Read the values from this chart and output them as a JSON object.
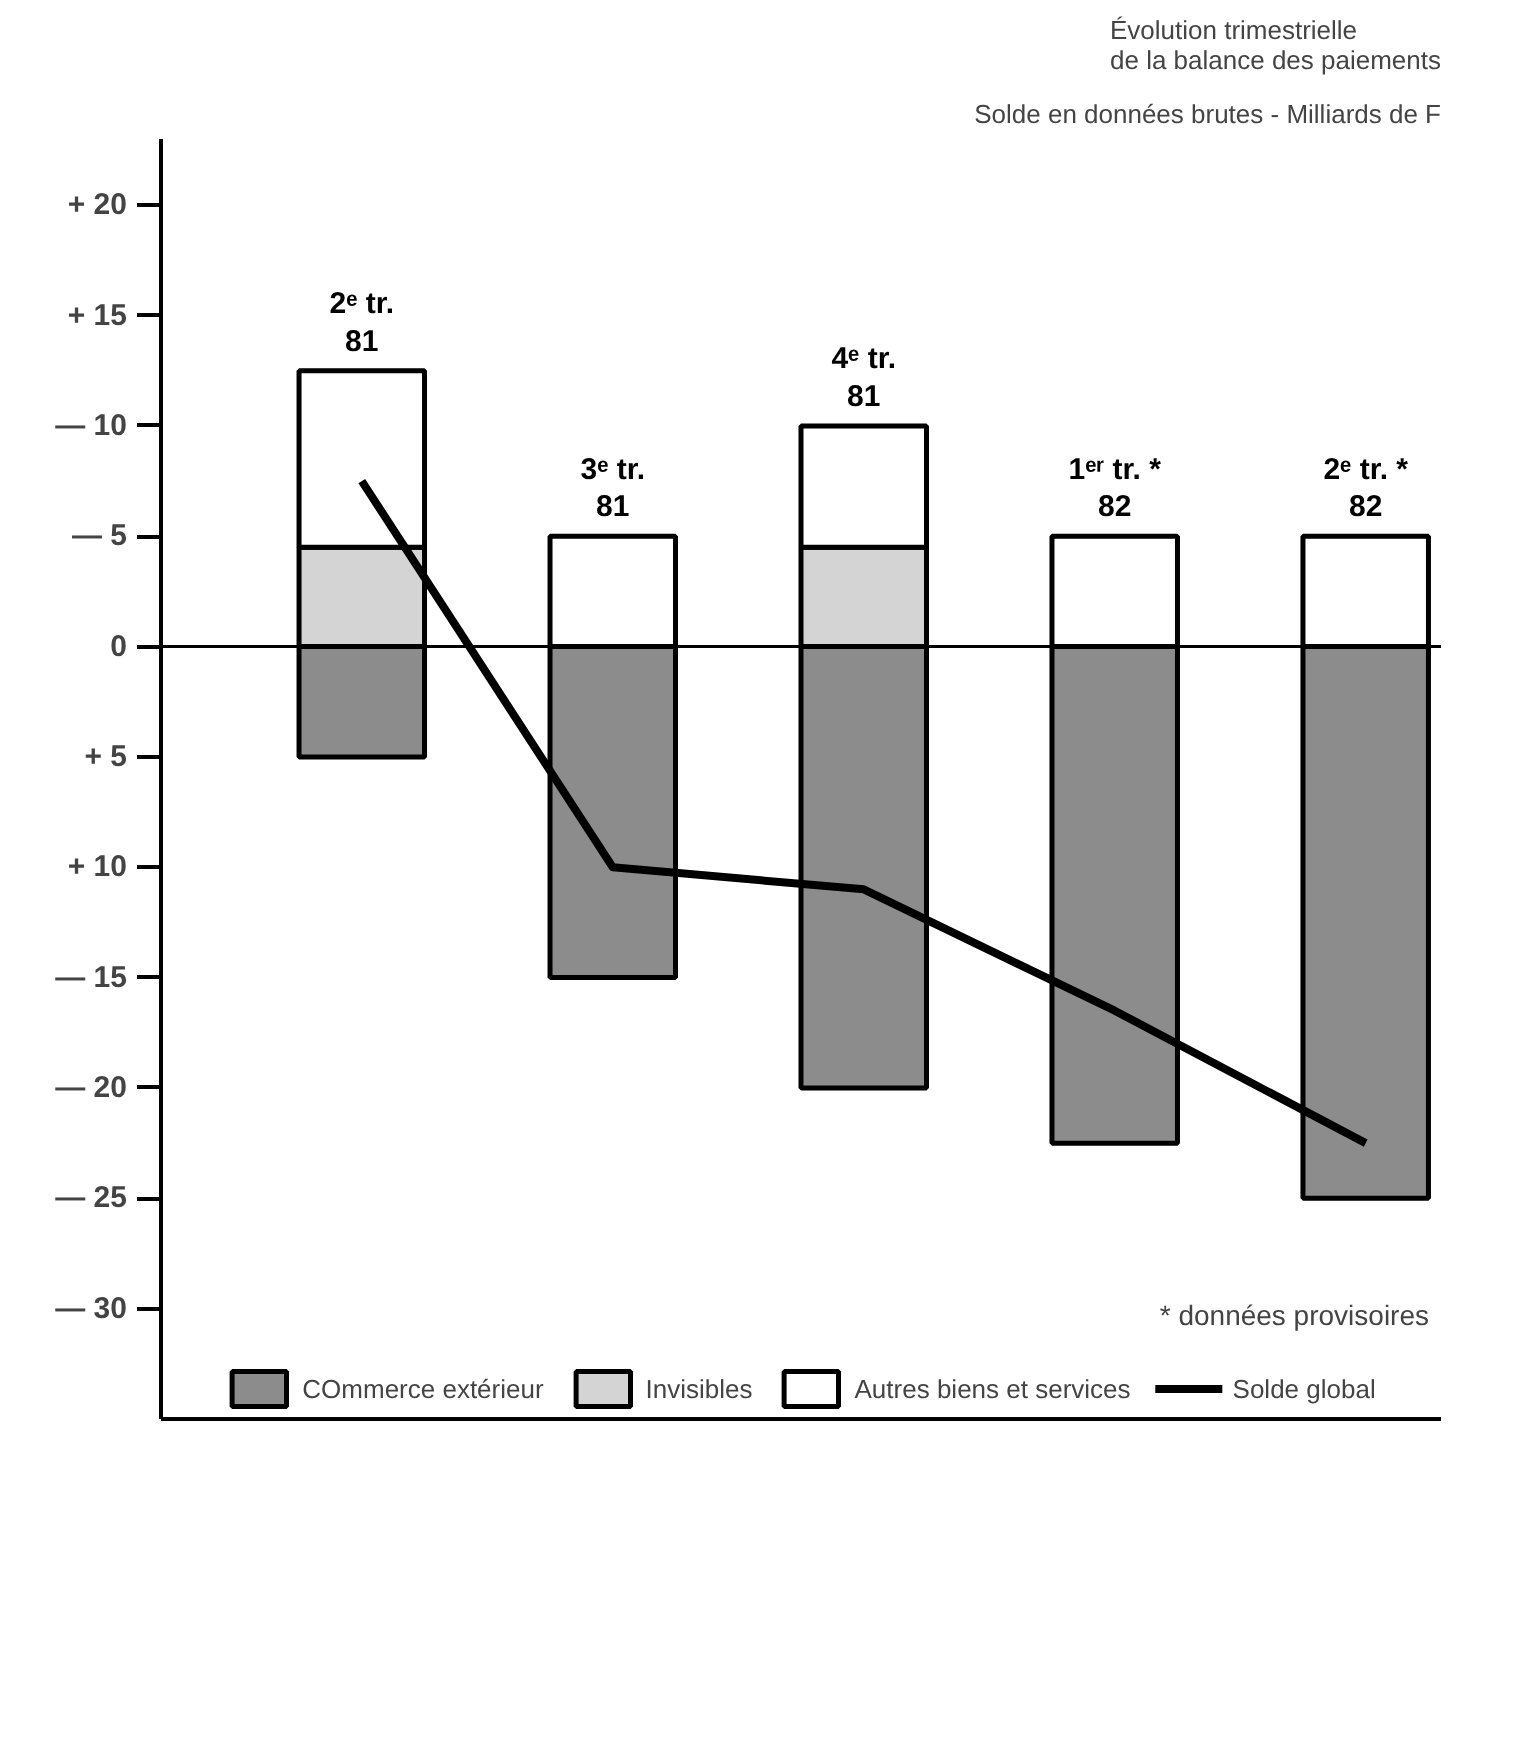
{
  "chart_data": {
    "type": "bar",
    "stacked": true,
    "title": "Évolution trimestrielle\nde la balance des paiements",
    "subtitle": "Solde en données brutes - Milliards de F",
    "categories": [
      "2ᵉ tr.\n81",
      "3ᵉ tr.\n81",
      "4ᵉ tr.\n81",
      "1ᵉʳ tr. *\n82",
      "2ᵉ tr. *\n82"
    ],
    "series": [
      {
        "name": "COmmerce extérieur",
        "color": "#8c8c8c",
        "values": [
          -5,
          -15,
          -20,
          -22.5,
          -25
        ]
      },
      {
        "name": "Invisibles",
        "color": "#d4d4d4",
        "values": [
          4.5,
          0,
          4.5,
          0,
          0
        ]
      },
      {
        "name": "Autres biens et services",
        "color": "#ffffff",
        "values": [
          8,
          5,
          5.5,
          5,
          5
        ]
      },
      {
        "name": "Solde global",
        "type": "line",
        "color": "#000000",
        "values": [
          7.5,
          -10,
          -11,
          -16.5,
          -22.5
        ]
      }
    ],
    "ylim": [
      -35,
      23
    ],
    "yticks": [
      {
        "value": 20,
        "label": "+ 20"
      },
      {
        "value": 15,
        "label": "+ 15"
      },
      {
        "value": 10,
        "label": "— 10"
      },
      {
        "value": 5,
        "label": "— 5"
      },
      0,
      {
        "value": -5,
        "label": "+ 5"
      },
      {
        "value": -10,
        "label": "+ 10"
      },
      {
        "value": -15,
        "label": "— 15"
      },
      {
        "value": -20,
        "label": "— 20"
      },
      {
        "value": -25,
        "label": "— 25"
      },
      {
        "value": -30,
        "label": "— 30"
      }
    ],
    "ref_lines": [
      {
        "axis": "y",
        "value": 0,
        "color": "#000000"
      }
    ],
    "tick_labels": "y",
    "grid": false,
    "legend": "bottom",
    "marker": "none",
    "annotations": [
      "* données provisoires"
    ]
  }
}
